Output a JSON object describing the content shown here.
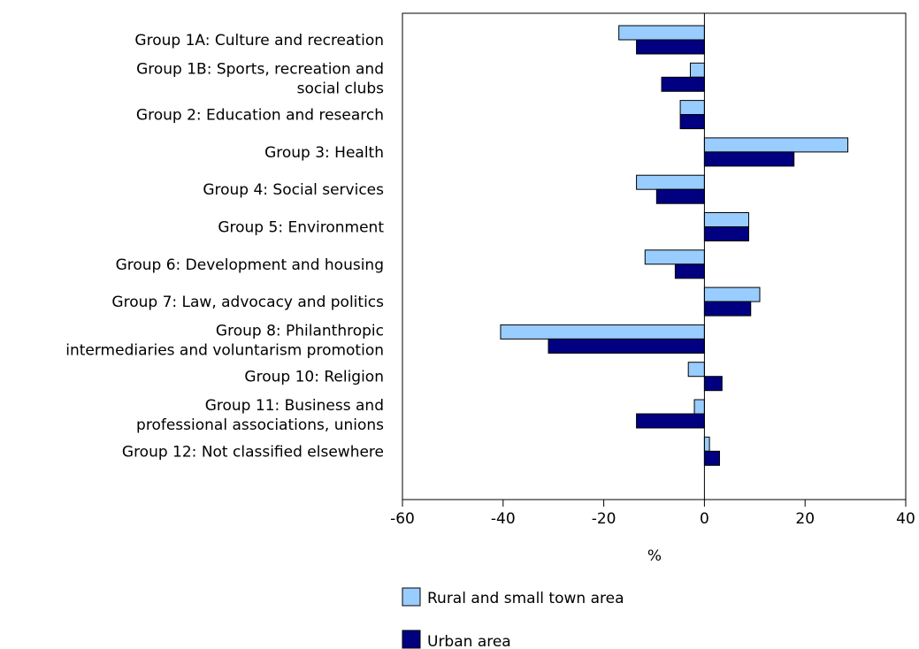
{
  "chart_data": {
    "type": "bar",
    "orientation": "horizontal",
    "title": "",
    "xlabel": "%",
    "ylabel": "",
    "xlim": [
      -60,
      40
    ],
    "xticks": [
      -60,
      -40,
      -20,
      0,
      20,
      40
    ],
    "xtick_labels": [
      "-60",
      "-40",
      "-20",
      "0",
      "20",
      "40"
    ],
    "grid": false,
    "legend_position": "bottom",
    "categories": [
      [
        "Group 1A: Culture and recreation"
      ],
      [
        "Group 1B: Sports, recreation and",
        "social clubs"
      ],
      [
        "Group 2: Education and research"
      ],
      [
        "Group 3: Health"
      ],
      [
        "Group 4: Social services"
      ],
      [
        "Group 5: Environment"
      ],
      [
        "Group 6: Development and housing"
      ],
      [
        "Group 7: Law, advocacy and politics"
      ],
      [
        "Group 8: Philanthropic",
        "intermediaries and voluntarism promotion"
      ],
      [
        "Group 10: Religion"
      ],
      [
        "Group 11: Business and",
        "professional associations, unions"
      ],
      [
        "Group 12: Not classified elsewhere"
      ]
    ],
    "series": [
      {
        "name": "Rural and small town area",
        "color": "#99ccff",
        "values": [
          -17,
          -2.8,
          -4.8,
          28.5,
          -13.5,
          8.8,
          -11.8,
          11,
          -40.5,
          -3.2,
          -2,
          1
        ]
      },
      {
        "name": "Urban area",
        "color": "#000080",
        "values": [
          -13.5,
          -8.5,
          -4.8,
          17.8,
          -9.5,
          8.8,
          -5.8,
          9.2,
          -31,
          3.5,
          -13.5,
          3
        ]
      }
    ]
  }
}
